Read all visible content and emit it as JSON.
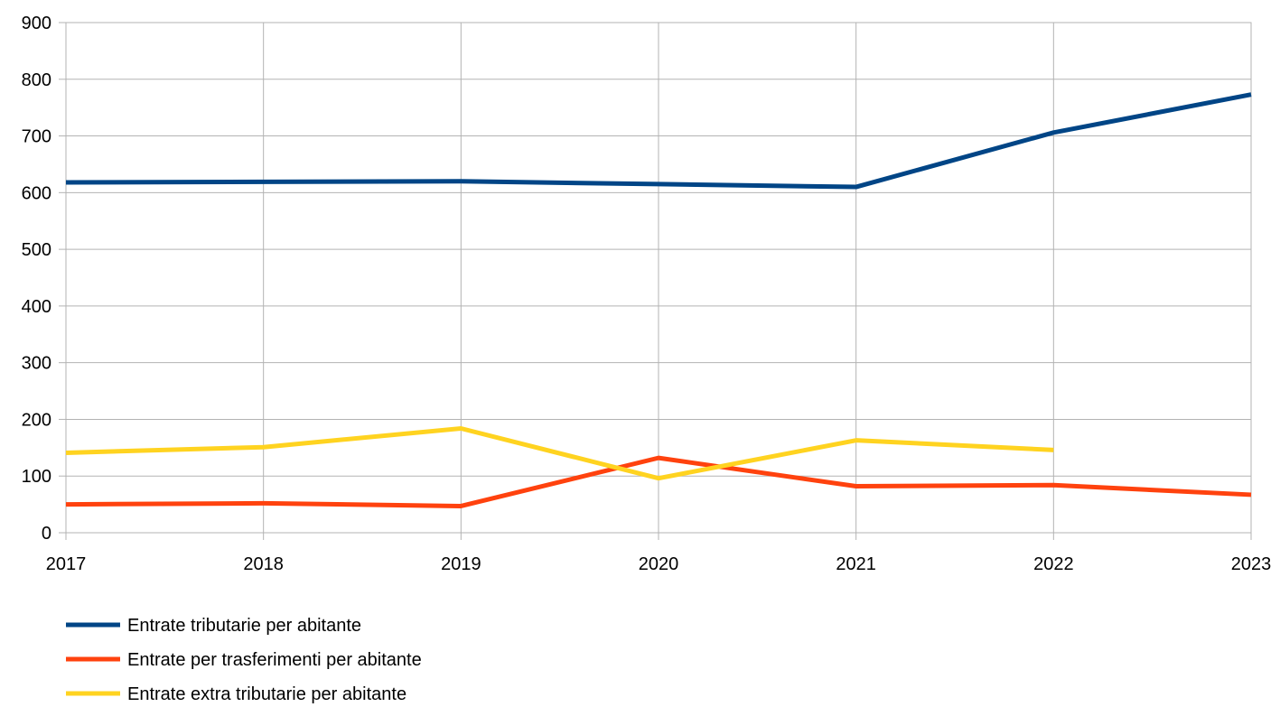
{
  "chart_data": {
    "type": "line",
    "title": "",
    "xlabel": "",
    "ylabel": "",
    "x": [
      "2017",
      "2018",
      "2019",
      "2020",
      "2021",
      "2022",
      "2023"
    ],
    "ylim": [
      0,
      900
    ],
    "yticks": [
      "0",
      "100",
      "200",
      "300",
      "400",
      "500",
      "600",
      "700",
      "800",
      "900"
    ],
    "grid": true,
    "legend_position": "bottom-left",
    "series": [
      {
        "name": "Entrate tributarie per abitante",
        "color": "#004586",
        "values": [
          618,
          619,
          620,
          615,
          610,
          706,
          773
        ]
      },
      {
        "name": "Entrate per trasferimenti per abitante",
        "color": "#ff420e",
        "values": [
          50,
          52,
          47,
          132,
          82,
          84,
          67
        ]
      },
      {
        "name": "Entrate extra tributarie per abitante",
        "color": "#ffd320",
        "values": [
          141,
          151,
          184,
          96,
          163,
          146,
          null
        ]
      }
    ]
  }
}
